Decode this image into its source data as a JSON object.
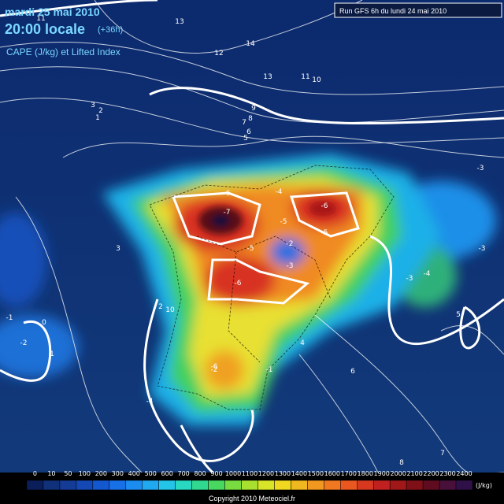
{
  "header": {
    "date": "mardi 25 mai 2010",
    "time": "20:00 locale",
    "lead": "(+36h)",
    "subtitle": "CAPE (J/kg) et Lifted Index",
    "run": "Run GFS 6h du lundi 24 mai 2010"
  },
  "map_labels": [
    "11",
    "13",
    "14",
    "12",
    "13",
    "11",
    "10",
    "9",
    "8",
    "7",
    "6",
    "5",
    "3",
    "2",
    "1",
    "-6",
    "-7",
    "-6",
    "-5",
    "-4",
    "-2",
    "-3",
    "-5",
    "-6",
    "-5",
    "-3",
    "-1",
    "-2",
    "0",
    "1",
    "2",
    "3",
    "4",
    "-3",
    "-3",
    "-4",
    "-2",
    "-1",
    "5",
    "6",
    "7",
    "8",
    "-6",
    "-4",
    "10"
  ],
  "colorbar": {
    "labels": [
      "0",
      "10",
      "50",
      "100",
      "200",
      "300",
      "400",
      "500",
      "600",
      "700",
      "800",
      "900",
      "1000",
      "1100",
      "1200",
      "1300",
      "1400",
      "1500",
      "1600",
      "1700",
      "1800",
      "1900",
      "2000",
      "2100",
      "2200",
      "2300",
      "2400"
    ],
    "unit": "(J/kg)",
    "colors": [
      "#0a1e5a",
      "#10307a",
      "#143c96",
      "#1448b4",
      "#1458d0",
      "#1870e6",
      "#1c8cf0",
      "#20a8f0",
      "#24c4e8",
      "#28d8c0",
      "#30d890",
      "#48d860",
      "#78dc40",
      "#a8e030",
      "#d8e428",
      "#f0d820",
      "#f0b820",
      "#f09820",
      "#f07820",
      "#e85820",
      "#d83820",
      "#c02020",
      "#a01818",
      "#801018",
      "#600c20",
      "#48103a",
      "#301048"
    ]
  },
  "footer": {
    "copyright": "Copyright 2010 Meteociel.fr"
  }
}
